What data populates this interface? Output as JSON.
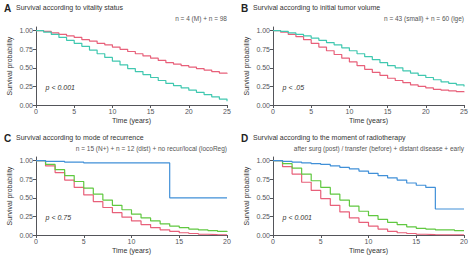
{
  "chart_data": [
    {
      "type": "step",
      "title": "Survival according to vitality status",
      "annotations": [
        "A",
        "n = 4 (M) + n = 98",
        "p < 0.001"
      ],
      "xlabel": "Time (years)",
      "ylabel": "Survival probability",
      "x": [
        0,
        1,
        2,
        3,
        4,
        5,
        6,
        7,
        8,
        9,
        10,
        11,
        12,
        13,
        14,
        15,
        16,
        17,
        18,
        19,
        20,
        21,
        22,
        23,
        24,
        25
      ],
      "series": [
        {
          "color": "#e8607a",
          "values": [
            1.0,
            0.99,
            0.97,
            0.95,
            0.93,
            0.91,
            0.88,
            0.86,
            0.83,
            0.81,
            0.78,
            0.75,
            0.72,
            0.69,
            0.66,
            0.63,
            0.6,
            0.57,
            0.55,
            0.53,
            0.51,
            0.49,
            0.47,
            0.45,
            0.43,
            0.42
          ]
        },
        {
          "color": "#40c8b0",
          "values": [
            1.0,
            0.98,
            0.95,
            0.91,
            0.87,
            0.83,
            0.79,
            0.74,
            0.69,
            0.64,
            0.59,
            0.54,
            0.49,
            0.45,
            0.41,
            0.37,
            0.33,
            0.29,
            0.26,
            0.23,
            0.2,
            0.17,
            0.14,
            0.11,
            0.08,
            0.05
          ]
        }
      ],
      "xlim": [
        0,
        25
      ],
      "ylim": [
        0.0,
        1.05
      ],
      "xticks": [
        0,
        5,
        10,
        15,
        20,
        25
      ],
      "yticks": [
        {
          "value": 0.0,
          "label": "0.00"
        },
        {
          "value": 0.25,
          "label": "0.25"
        },
        {
          "value": 0.5,
          "label": "0.50"
        },
        {
          "value": 0.75,
          "label": "0.75"
        },
        {
          "value": 1.0,
          "label": "1.00"
        }
      ],
      "grid": false
    },
    {
      "type": "step",
      "title": "Survival according to initial tumor volume",
      "annotations": [
        "B",
        "n = 43 (small) + n = 60 (lge)",
        "p < .05"
      ],
      "xlabel": "Time (years)",
      "ylabel": "Survival probability",
      "x": [
        0,
        1,
        2,
        3,
        4,
        5,
        6,
        7,
        8,
        9,
        10,
        11,
        12,
        13,
        14,
        15,
        16,
        17,
        18,
        19,
        20,
        21,
        22,
        23,
        24,
        25
      ],
      "series": [
        {
          "color": "#e8607a",
          "values": [
            1.0,
            0.98,
            0.95,
            0.92,
            0.88,
            0.83,
            0.78,
            0.73,
            0.68,
            0.63,
            0.58,
            0.53,
            0.48,
            0.44,
            0.4,
            0.36,
            0.33,
            0.3,
            0.27,
            0.25,
            0.23,
            0.21,
            0.2,
            0.19,
            0.18,
            0.17
          ]
        },
        {
          "color": "#40c8b0",
          "values": [
            1.0,
            0.99,
            0.97,
            0.95,
            0.93,
            0.9,
            0.87,
            0.84,
            0.81,
            0.77,
            0.73,
            0.69,
            0.65,
            0.61,
            0.57,
            0.53,
            0.5,
            0.46,
            0.43,
            0.4,
            0.37,
            0.34,
            0.31,
            0.29,
            0.27,
            0.25
          ]
        }
      ],
      "xlim": [
        0,
        25
      ],
      "ylim": [
        0.0,
        1.05
      ],
      "xticks": [
        0,
        5,
        10,
        15,
        20,
        25
      ],
      "yticks": [
        {
          "value": 0.0,
          "label": "0.00"
        },
        {
          "value": 0.25,
          "label": "0.25"
        },
        {
          "value": 0.5,
          "label": "0.50"
        },
        {
          "value": 0.75,
          "label": "0.75"
        },
        {
          "value": 1.0,
          "label": "1.00"
        }
      ],
      "grid": false
    },
    {
      "type": "step",
      "title": "Survival according to mode of recurrence",
      "annotations": [
        "C",
        "n = 15 (N+) + n = 12 (dist) + no recur/local (locoReg)",
        "p < 0.75"
      ],
      "xlabel": "Time (years)",
      "ylabel": "Survival probability",
      "x": [
        0,
        1,
        2,
        3,
        4,
        5,
        6,
        7,
        8,
        9,
        10,
        11,
        12,
        13,
        14,
        15,
        16,
        17,
        18,
        19,
        20
      ],
      "series": [
        {
          "color": "#e8607a",
          "values": [
            1.0,
            0.93,
            0.84,
            0.74,
            0.64,
            0.54,
            0.45,
            0.37,
            0.3,
            0.24,
            0.19,
            0.14,
            0.1,
            0.07,
            0.05,
            0.03,
            0.02,
            0.01,
            0.005,
            0.003,
            0.001
          ]
        },
        {
          "color": "#60c840",
          "values": [
            1.0,
            0.95,
            0.88,
            0.8,
            0.72,
            0.63,
            0.55,
            0.47,
            0.4,
            0.34,
            0.28,
            0.23,
            0.19,
            0.15,
            0.12,
            0.1,
            0.08,
            0.07,
            0.06,
            0.05,
            0.04
          ]
        },
        {
          "color": "#4090d8",
          "values": [
            1.0,
            0.99,
            0.99,
            0.98,
            0.98,
            0.97,
            0.97,
            0.97,
            0.97,
            0.97,
            0.97,
            0.97,
            0.97,
            0.97,
            0.5,
            0.5,
            0.5,
            0.5,
            0.5,
            0.5,
            0.5
          ]
        }
      ],
      "xlim": [
        0,
        20
      ],
      "ylim": [
        0.0,
        1.05
      ],
      "xticks": [
        0,
        5,
        10,
        15,
        20
      ],
      "yticks": [
        {
          "value": 0.0,
          "label": "0.00"
        },
        {
          "value": 0.25,
          "label": "0.25"
        },
        {
          "value": 0.5,
          "label": "0.50"
        },
        {
          "value": 0.75,
          "label": "0.75"
        },
        {
          "value": 1.0,
          "label": "1.00"
        }
      ],
      "grid": false
    },
    {
      "type": "step",
      "title": "Survival according to the moment of radiotherapy",
      "annotations": [
        "D",
        "after surg (post) / transfer (before) + distant disease + early",
        "p < 0.001"
      ],
      "xlabel": "Time (years)",
      "ylabel": "Survival probability",
      "x": [
        0,
        1,
        2,
        3,
        4,
        5,
        6,
        7,
        8,
        9,
        10,
        11,
        12,
        13,
        14,
        15,
        16,
        17,
        18,
        19,
        20
      ],
      "series": [
        {
          "color": "#e8607a",
          "values": [
            1.0,
            0.92,
            0.82,
            0.71,
            0.6,
            0.49,
            0.4,
            0.31,
            0.23,
            0.17,
            0.12,
            0.08,
            0.05,
            0.03,
            0.02,
            0.01,
            0.005,
            0.003,
            0.002,
            0.001,
            0.001
          ]
        },
        {
          "color": "#60c840",
          "values": [
            1.0,
            0.96,
            0.9,
            0.82,
            0.73,
            0.64,
            0.55,
            0.47,
            0.39,
            0.32,
            0.26,
            0.21,
            0.17,
            0.14,
            0.11,
            0.09,
            0.08,
            0.07,
            0.07,
            0.06,
            0.06
          ]
        },
        {
          "color": "#4090d8",
          "values": [
            1.0,
            0.99,
            0.98,
            0.97,
            0.96,
            0.95,
            0.93,
            0.91,
            0.89,
            0.86,
            0.83,
            0.8,
            0.77,
            0.74,
            0.7,
            0.67,
            0.64,
            0.35,
            0.35,
            0.35,
            0.35
          ]
        }
      ],
      "xlim": [
        0,
        20
      ],
      "ylim": [
        0.0,
        1.05
      ],
      "xticks": [
        0,
        5,
        10,
        15,
        20
      ],
      "yticks": [
        {
          "value": 0.0,
          "label": "0.00"
        },
        {
          "value": 0.25,
          "label": "0.25"
        },
        {
          "value": 0.5,
          "label": "0.50"
        },
        {
          "value": 0.75,
          "label": "0.75"
        },
        {
          "value": 1.0,
          "label": "1.00"
        }
      ],
      "grid": false
    }
  ]
}
